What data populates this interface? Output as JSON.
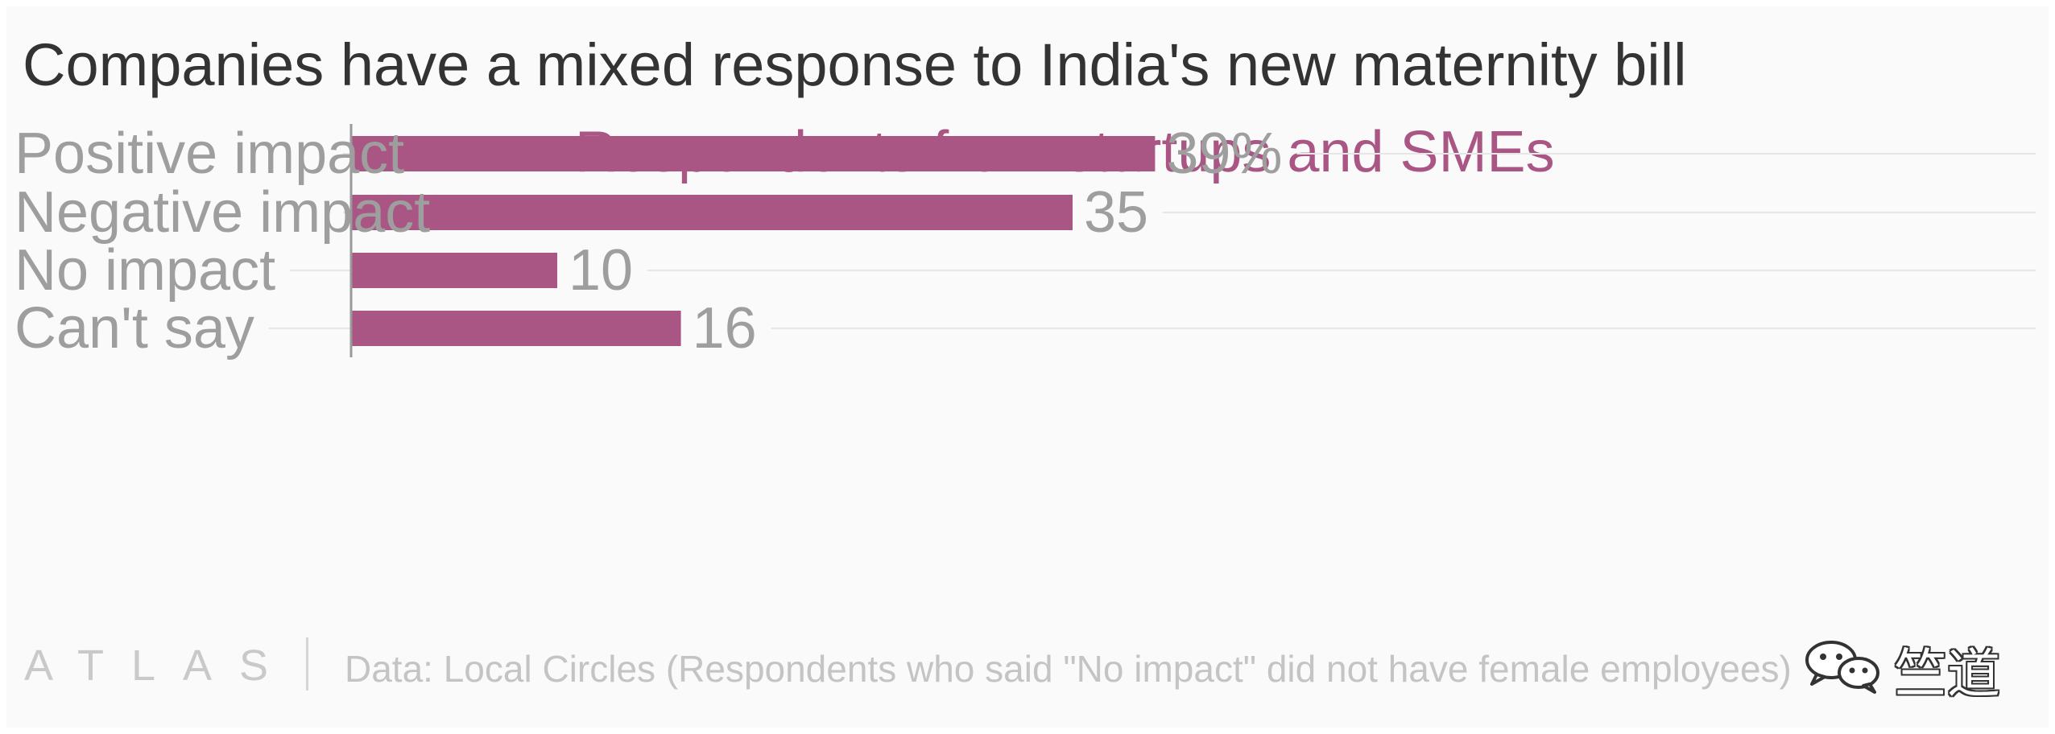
{
  "colors": {
    "bar": "#a95684",
    "subtitle": "#a95684",
    "title": "#333333",
    "label": "#9e9e9e",
    "grid": "#e6e6e6",
    "axis": "#9a9a9a"
  },
  "chart_data": {
    "type": "bar",
    "orientation": "horizontal",
    "title": "Companies have a mixed response to India's new maternity bill",
    "subtitle": "Respondents from startups and SMEs",
    "categories": [
      "Positive impact",
      "Negative impact",
      "No impact",
      "Can't say"
    ],
    "values": [
      39,
      35,
      10,
      16
    ],
    "value_labels": [
      "39%",
      "35",
      "10",
      "16"
    ],
    "unit": "%",
    "xlim": [
      0,
      40
    ],
    "grid": true,
    "legend": "none"
  },
  "footer": {
    "logo": "ATLAS",
    "source": "Data: Local Circles (Respondents who said \"No impact\" did not have female employees)",
    "watermark": "竺道",
    "watermark_icon": "wechat-icon"
  }
}
